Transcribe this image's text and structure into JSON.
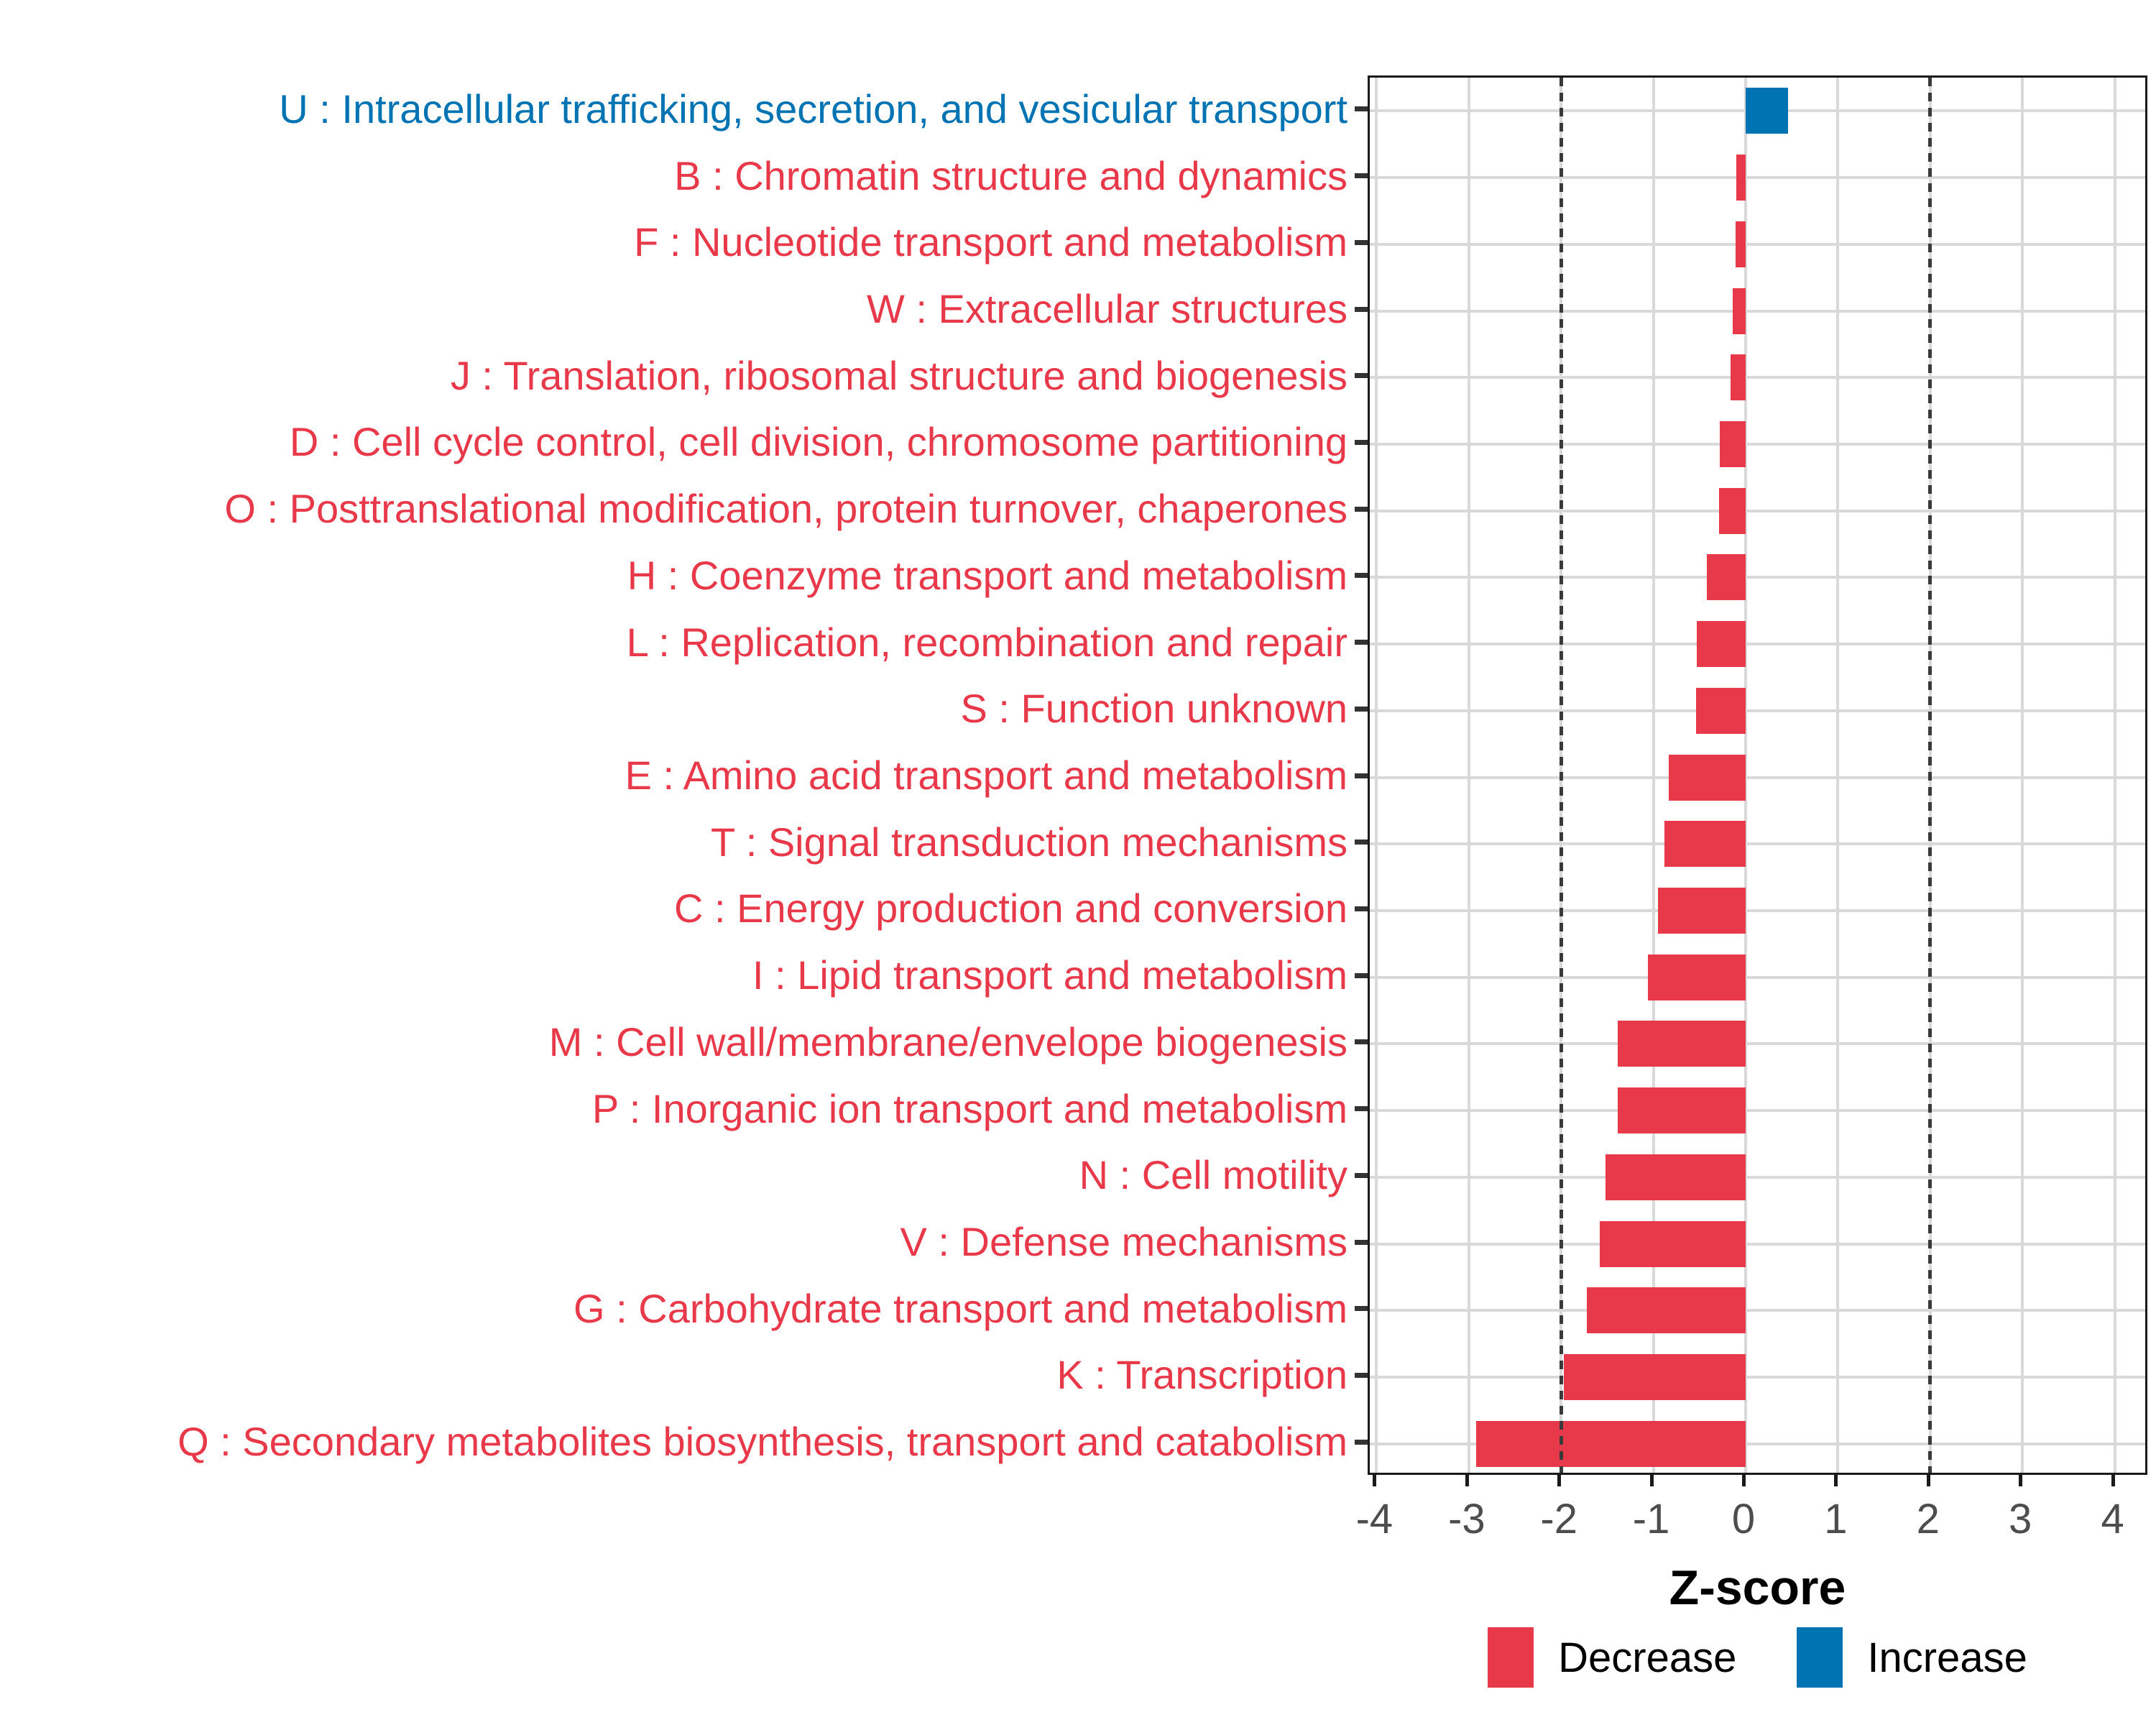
{
  "chart_data": {
    "type": "bar",
    "orientation": "horizontal",
    "xlabel": "Z-score",
    "x_ticks": [
      -4,
      -3,
      -2,
      -1,
      0,
      1,
      2,
      3,
      4
    ],
    "xlim": [
      -4.1,
      4.4
    ],
    "reference_lines": [
      -2,
      2
    ],
    "grid": true,
    "categories": [
      {
        "code": "U",
        "label": "U : Intracellular trafficking, secretion, and vesicular transport",
        "value": 0.46,
        "direction": "Increase"
      },
      {
        "code": "B",
        "label": "B : Chromatin structure and dynamics",
        "value": -0.1,
        "direction": "Decrease"
      },
      {
        "code": "F",
        "label": "F : Nucleotide transport and metabolism",
        "value": -0.11,
        "direction": "Decrease"
      },
      {
        "code": "W",
        "label": "W : Extracellular structures",
        "value": -0.14,
        "direction": "Decrease"
      },
      {
        "code": "J",
        "label": "J : Translation, ribosomal structure and biogenesis",
        "value": -0.16,
        "direction": "Decrease"
      },
      {
        "code": "D",
        "label": "D : Cell cycle control, cell division, chromosome partitioning",
        "value": -0.28,
        "direction": "Decrease"
      },
      {
        "code": "O",
        "label": "O : Posttranslational modification, protein turnover, chaperones",
        "value": -0.29,
        "direction": "Decrease"
      },
      {
        "code": "H",
        "label": "H : Coenzyme transport and metabolism",
        "value": -0.42,
        "direction": "Decrease"
      },
      {
        "code": "L",
        "label": "L : Replication, recombination and repair",
        "value": -0.53,
        "direction": "Decrease"
      },
      {
        "code": "S",
        "label": "S : Function unknown",
        "value": -0.54,
        "direction": "Decrease"
      },
      {
        "code": "E",
        "label": "E : Amino acid transport and metabolism",
        "value": -0.83,
        "direction": "Decrease"
      },
      {
        "code": "T",
        "label": "T : Signal transduction mechanisms",
        "value": -0.88,
        "direction": "Decrease"
      },
      {
        "code": "C",
        "label": "C : Energy production and conversion",
        "value": -0.95,
        "direction": "Decrease"
      },
      {
        "code": "I",
        "label": "I : Lipid transport and metabolism",
        "value": -1.06,
        "direction": "Decrease"
      },
      {
        "code": "M",
        "label": "M : Cell wall/membrane/envelope biogenesis",
        "value": -1.39,
        "direction": "Decrease"
      },
      {
        "code": "P",
        "label": "P : Inorganic ion transport and metabolism",
        "value": -1.39,
        "direction": "Decrease"
      },
      {
        "code": "N",
        "label": "N : Cell motility",
        "value": -1.52,
        "direction": "Decrease"
      },
      {
        "code": "V",
        "label": "V : Defense mechanisms",
        "value": -1.58,
        "direction": "Decrease"
      },
      {
        "code": "G",
        "label": "G : Carbohydrate transport and metabolism",
        "value": -1.72,
        "direction": "Decrease"
      },
      {
        "code": "K",
        "label": "K : Transcription",
        "value": -1.97,
        "direction": "Decrease"
      },
      {
        "code": "Q",
        "label": "Q : Secondary metabolites biosynthesis, transport and catabolism",
        "value": -2.92,
        "direction": "Decrease"
      }
    ],
    "legend": {
      "position": "bottom",
      "items": [
        {
          "label": "Decrease",
          "color": "#E8394A"
        },
        {
          "label": "Increase",
          "color": "#0073B2"
        }
      ]
    }
  },
  "colors": {
    "decrease": "#E8394A",
    "increase": "#0073B2",
    "gridline": "#D9D9D9",
    "reference_line": "#3A3A3A",
    "tick_text": "#4D4D4D",
    "axis_text": "#000000",
    "panel_border": "#1A1A1A"
  }
}
